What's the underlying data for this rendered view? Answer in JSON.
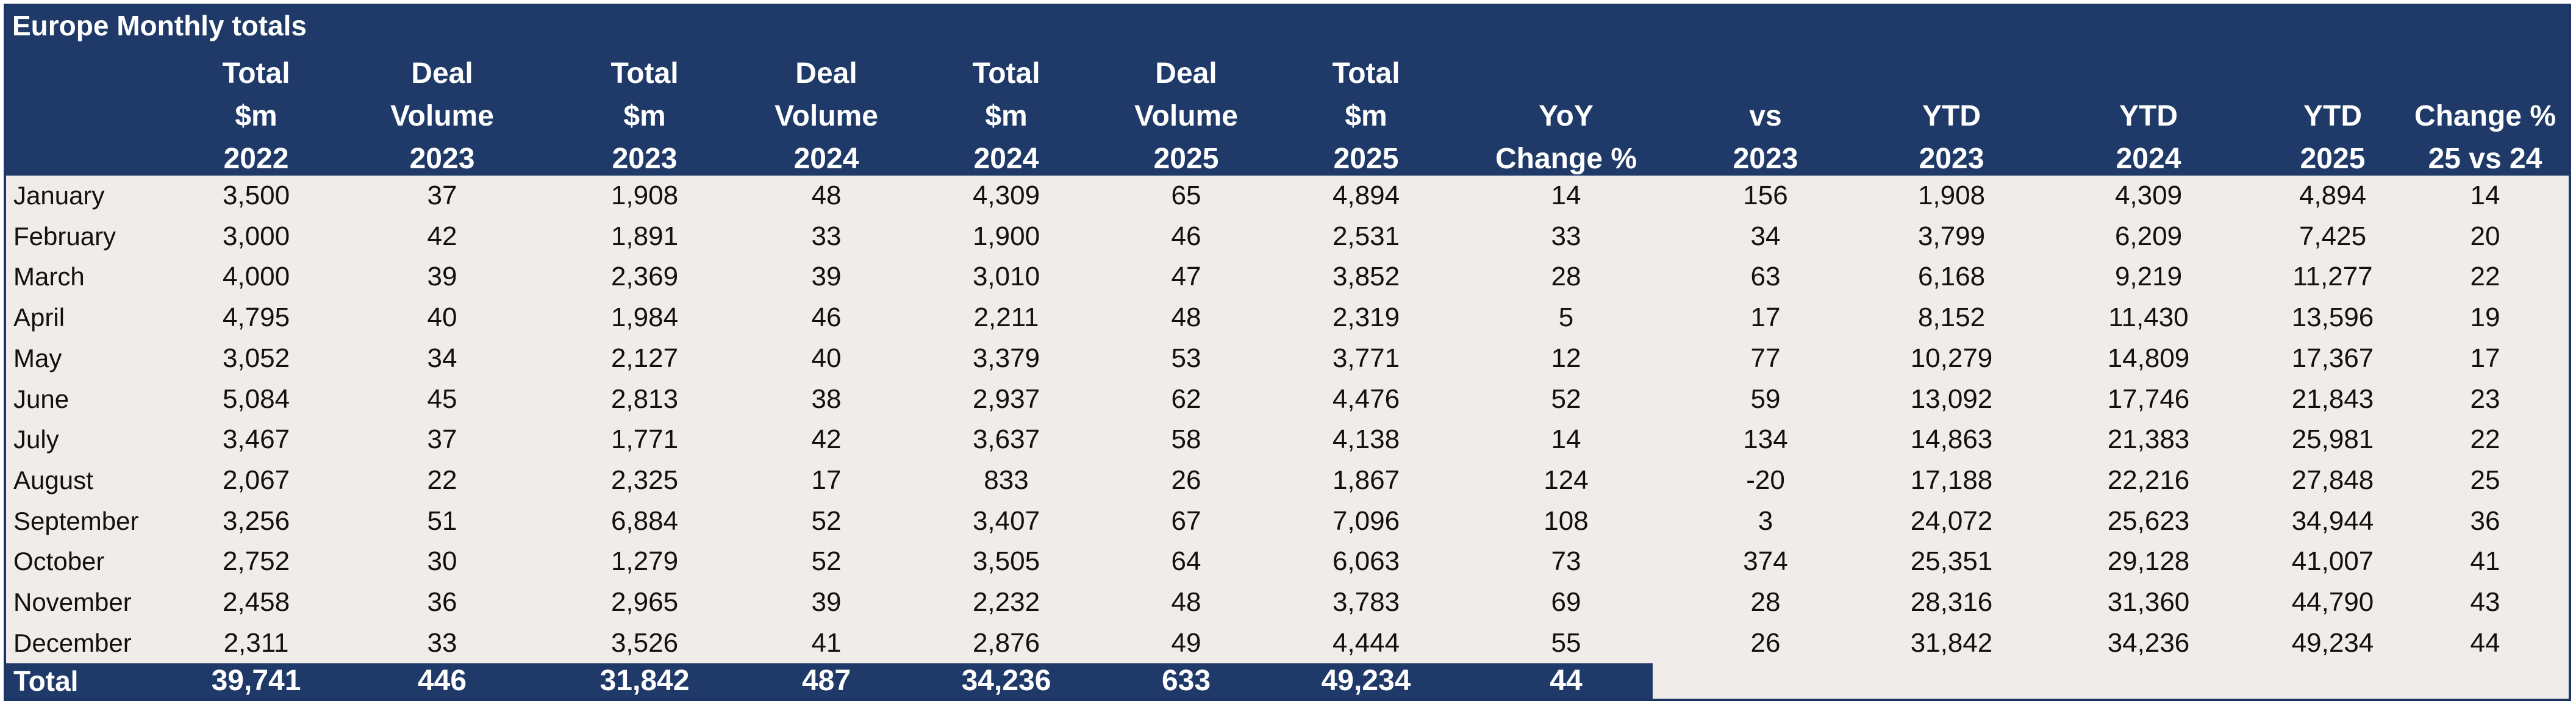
{
  "title": "Europe Monthly totals",
  "columns": [
    [
      "Total",
      "$m",
      "2022"
    ],
    [
      "Deal",
      "Volume",
      "2023"
    ],
    [
      "Total",
      "$m",
      "2023"
    ],
    [
      "Deal",
      "Volume",
      "2024"
    ],
    [
      "Total",
      "$m",
      "2024"
    ],
    [
      "Deal",
      "Volume",
      "2025"
    ],
    [
      "Total",
      "$m",
      "2025"
    ],
    [
      "",
      "YoY",
      "Change %"
    ],
    [
      "",
      "vs",
      "2023"
    ],
    [
      "",
      "YTD",
      "2023"
    ],
    [
      "",
      "YTD",
      "2024"
    ],
    [
      "",
      "YTD",
      "2025"
    ],
    [
      "",
      "Change %",
      "25 vs 24"
    ]
  ],
  "rows": [
    {
      "month": "January",
      "values": [
        "3,500",
        "37",
        "1,908",
        "48",
        "4,309",
        "65",
        "4,894",
        "14",
        "156",
        "1,908",
        "4,309",
        "4,894",
        "14"
      ]
    },
    {
      "month": "February",
      "values": [
        "3,000",
        "42",
        "1,891",
        "33",
        "1,900",
        "46",
        "2,531",
        "33",
        "34",
        "3,799",
        "6,209",
        "7,425",
        "20"
      ]
    },
    {
      "month": "March",
      "values": [
        "4,000",
        "39",
        "2,369",
        "39",
        "3,010",
        "47",
        "3,852",
        "28",
        "63",
        "6,168",
        "9,219",
        "11,277",
        "22"
      ]
    },
    {
      "month": "April",
      "values": [
        "4,795",
        "40",
        "1,984",
        "46",
        "2,211",
        "48",
        "2,319",
        "5",
        "17",
        "8,152",
        "11,430",
        "13,596",
        "19"
      ]
    },
    {
      "month": "May",
      "values": [
        "3,052",
        "34",
        "2,127",
        "40",
        "3,379",
        "53",
        "3,771",
        "12",
        "77",
        "10,279",
        "14,809",
        "17,367",
        "17"
      ]
    },
    {
      "month": "June",
      "values": [
        "5,084",
        "45",
        "2,813",
        "38",
        "2,937",
        "62",
        "4,476",
        "52",
        "59",
        "13,092",
        "17,746",
        "21,843",
        "23"
      ]
    },
    {
      "month": "July",
      "values": [
        "3,467",
        "37",
        "1,771",
        "42",
        "3,637",
        "58",
        "4,138",
        "14",
        "134",
        "14,863",
        "21,383",
        "25,981",
        "22"
      ]
    },
    {
      "month": "August",
      "values": [
        "2,067",
        "22",
        "2,325",
        "17",
        "833",
        "26",
        "1,867",
        "124",
        "-20",
        "17,188",
        "22,216",
        "27,848",
        "25"
      ]
    },
    {
      "month": "September",
      "values": [
        "3,256",
        "51",
        "6,884",
        "52",
        "3,407",
        "67",
        "7,096",
        "108",
        "3",
        "24,072",
        "25,623",
        "34,944",
        "36"
      ]
    },
    {
      "month": "October",
      "values": [
        "2,752",
        "30",
        "1,279",
        "52",
        "3,505",
        "64",
        "6,063",
        "73",
        "374",
        "25,351",
        "29,128",
        "41,007",
        "41"
      ]
    },
    {
      "month": "November",
      "values": [
        "2,458",
        "36",
        "2,965",
        "39",
        "2,232",
        "48",
        "3,783",
        "69",
        "28",
        "28,316",
        "31,360",
        "44,790",
        "43"
      ]
    },
    {
      "month": "December",
      "values": [
        "2,311",
        "33",
        "3,526",
        "41",
        "2,876",
        "49",
        "4,444",
        "55",
        "26",
        "31,842",
        "34,236",
        "49,234",
        "44"
      ]
    }
  ],
  "total": {
    "label": "Total",
    "values": [
      "39,741",
      "446",
      "31,842",
      "487",
      "34,236",
      "633",
      "49,234",
      "44"
    ]
  }
}
